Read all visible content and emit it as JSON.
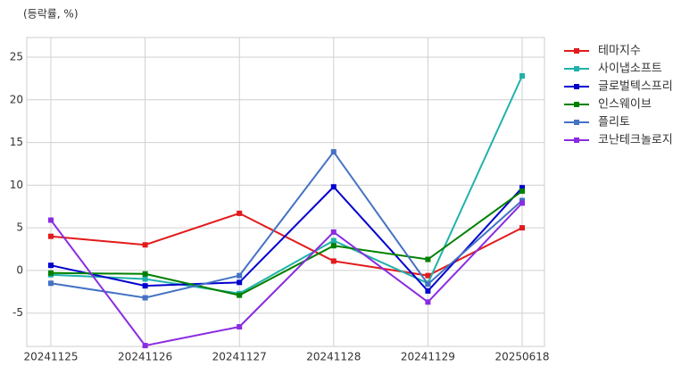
{
  "chart_data": {
    "type": "line",
    "title": "(등락률, %)",
    "categories": [
      "20241125",
      "20241126",
      "20241127",
      "20241128",
      "20241129",
      "20250618"
    ],
    "series": [
      {
        "name": "테마지수",
        "color": "#e31a1c",
        "values": [
          4.0,
          3.0,
          6.7,
          1.1,
          -0.6,
          5.0
        ]
      },
      {
        "name": "사이냅소프트",
        "color": "#20b2aa",
        "values": [
          -0.5,
          -1.0,
          -2.7,
          3.5,
          -1.5,
          22.8
        ]
      },
      {
        "name": "글로벌텍스프리",
        "color": "#0000cd",
        "values": [
          0.6,
          -1.8,
          -1.4,
          9.8,
          -2.4,
          9.7
        ]
      },
      {
        "name": "인스웨이브",
        "color": "#008000",
        "values": [
          -0.3,
          -0.4,
          -2.9,
          2.9,
          1.3,
          9.3
        ]
      },
      {
        "name": "플리토",
        "color": "#4472c4",
        "values": [
          -1.5,
          -3.2,
          -0.6,
          13.9,
          -1.6,
          8.2
        ]
      },
      {
        "name": "코난테크놀로지",
        "color": "#8a2be2",
        "values": [
          5.9,
          -8.8,
          -6.6,
          4.5,
          -3.7,
          7.9
        ]
      }
    ],
    "ylim": [
      -8.9,
      27.3
    ],
    "yticks": [
      -5,
      0,
      5,
      10,
      15,
      20,
      25
    ],
    "grid": true,
    "legend": "outside-right"
  }
}
